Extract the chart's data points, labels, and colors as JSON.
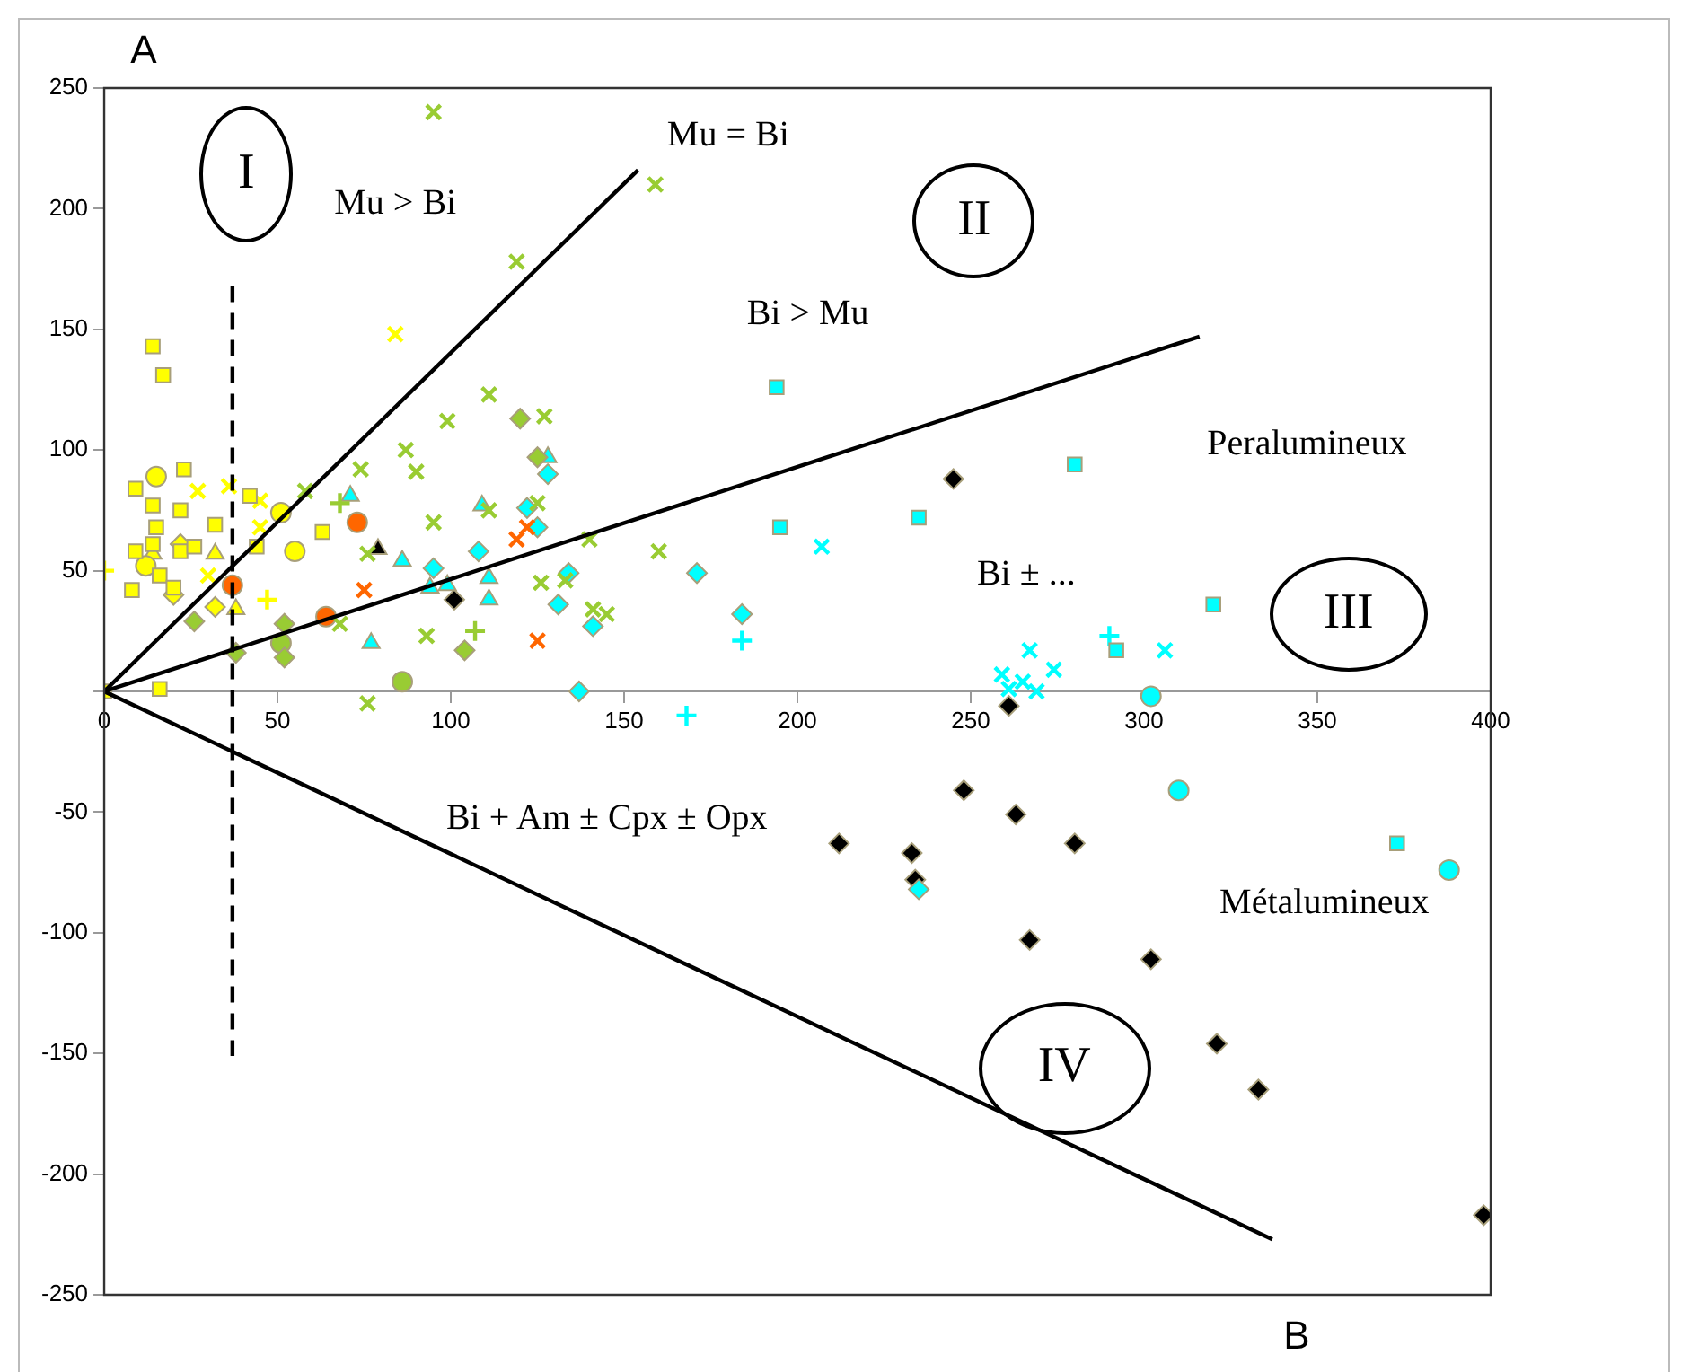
{
  "chart_data": {
    "type": "scatter",
    "xlabel": "B",
    "ylabel": "A",
    "xlim": [
      0,
      400
    ],
    "ylim": [
      -250,
      250
    ],
    "xticks": [
      0,
      50,
      100,
      150,
      200,
      250,
      300,
      350,
      400
    ],
    "yticks": [
      -250,
      -200,
      -150,
      -100,
      -50,
      {
        "value": 0,
        "label": null
      },
      50,
      100,
      150,
      200,
      250
    ],
    "grid": false,
    "legend": false,
    "annotations": [
      "Mu = Bi",
      "I",
      "Mu > Bi",
      "II",
      "Bi > Mu",
      "Peralumineux",
      "Bi ± ...",
      "III",
      "Bi + Am ± Cpx ± Opx",
      "Métalumineux",
      "IV"
    ],
    "series": [
      {
        "type": "line",
        "color": "#000000",
        "marker": "none",
        "line_style": "solid",
        "x": [
          0,
          154
        ],
        "values": [
          0,
          216
        ]
      },
      {
        "type": "line",
        "color": "#000000",
        "marker": "none",
        "line_style": "solid",
        "x": [
          0,
          316
        ],
        "values": [
          0,
          147
        ]
      },
      {
        "type": "line",
        "color": "#000000",
        "marker": "none",
        "line_style": "solid",
        "x": [
          0,
          337
        ],
        "values": [
          0,
          -227
        ]
      },
      {
        "type": "line",
        "color": "#000000",
        "marker": "none",
        "line_style": "dashed",
        "x": [
          37,
          37
        ],
        "values": [
          168,
          -151
        ]
      },
      {
        "color": "#ffff00",
        "marker": "square",
        "x": [
          14,
          17,
          9,
          23,
          14,
          22,
          42,
          63,
          44,
          32,
          15,
          9,
          14,
          8,
          22,
          26,
          16,
          20,
          0,
          16
        ],
        "values": [
          143,
          131,
          84,
          92,
          77,
          75,
          81,
          66,
          60,
          69,
          68,
          58,
          61,
          42,
          58,
          60,
          48,
          43,
          0,
          1
        ]
      },
      {
        "color": "#ffff00",
        "marker": "circle",
        "x": [
          15,
          51,
          55,
          12
        ],
        "values": [
          89,
          74,
          58,
          52
        ]
      },
      {
        "color": "#ffff00",
        "marker": "cross",
        "x": [
          84,
          36,
          45
        ],
        "values": [
          148,
          85,
          79
        ]
      },
      {
        "color": "#ffff00",
        "marker": "cross",
        "x": [
          27,
          45,
          30
        ],
        "values": [
          83,
          68,
          48
        ]
      },
      {
        "color": "#ffff00",
        "marker": "plus",
        "x": [
          0,
          47
        ],
        "values": [
          50,
          38
        ]
      },
      {
        "color": "#ffff00",
        "marker": "diamond",
        "x": [
          22,
          32,
          20
        ],
        "values": [
          61,
          35,
          40
        ]
      },
      {
        "color": "#ffff00",
        "marker": "triangle",
        "x": [
          14,
          32,
          38
        ],
        "values": [
          57,
          57,
          34
        ]
      },
      {
        "color": "#99cc33",
        "marker": "cross",
        "x": [
          95,
          159,
          119,
          111,
          99,
          127,
          87,
          90,
          74,
          58,
          76,
          93,
          68,
          76,
          95,
          111
        ],
        "values": [
          240,
          210,
          178,
          123,
          112,
          114,
          100,
          91,
          92,
          83,
          57,
          23,
          28,
          -5,
          70,
          75
        ]
      },
      {
        "color": "#99cc33",
        "marker": "diamond",
        "x": [
          120,
          104,
          52,
          26,
          38,
          52,
          125
        ],
        "values": [
          113,
          17,
          28,
          29,
          16,
          14,
          97
        ]
      },
      {
        "color": "#99cc33",
        "marker": "circle",
        "x": [
          86,
          51
        ],
        "values": [
          4,
          20
        ]
      },
      {
        "color": "#99cc33",
        "marker": "cross",
        "x": [
          126,
          133,
          140,
          145,
          141,
          160,
          125
        ],
        "values": [
          45,
          46,
          63,
          32,
          34,
          58,
          78
        ]
      },
      {
        "color": "#99cc33",
        "marker": "plus",
        "x": [
          68,
          107
        ],
        "values": [
          78,
          25
        ]
      },
      {
        "color": "#ff6600",
        "marker": "circle",
        "x": [
          37,
          64,
          73
        ],
        "values": [
          44,
          31,
          70
        ]
      },
      {
        "color": "#ff6600",
        "marker": "cross",
        "x": [
          75,
          125,
          119,
          122
        ],
        "values": [
          42,
          21,
          63,
          68
        ]
      },
      {
        "color": "#00ffff",
        "marker": "triangle",
        "x": [
          71,
          86,
          109,
          128,
          111,
          111,
          99,
          94,
          77
        ],
        "values": [
          81,
          54,
          77,
          97,
          47,
          38,
          44,
          43,
          20
        ]
      },
      {
        "color": "#00ffff",
        "marker": "diamond",
        "x": [
          95,
          108,
          128,
          122,
          125,
          131,
          171,
          134,
          141,
          137,
          184,
          235
        ],
        "values": [
          51,
          58,
          90,
          76,
          68,
          36,
          49,
          49,
          27,
          0,
          32,
          -82
        ]
      },
      {
        "color": "#00ffff",
        "marker": "square",
        "x": [
          194,
          195,
          235,
          280,
          320,
          292,
          373
        ],
        "values": [
          126,
          68,
          72,
          94,
          36,
          17,
          -63
        ]
      },
      {
        "color": "#00ffff",
        "marker": "circle",
        "x": [
          302,
          310,
          388
        ],
        "values": [
          -2,
          -41,
          -74
        ]
      },
      {
        "color": "#00ffff",
        "marker": "cross",
        "x": [
          207,
          259,
          267,
          274,
          265,
          269,
          306,
          261
        ],
        "values": [
          60,
          7,
          17,
          9,
          4,
          0,
          17,
          1
        ]
      },
      {
        "color": "#00ffff",
        "marker": "plus",
        "x": [
          184,
          168,
          290
        ],
        "values": [
          21,
          -10,
          23
        ]
      },
      {
        "color": "#000000",
        "marker": "triangle",
        "x": [
          79
        ],
        "values": [
          59
        ]
      },
      {
        "color": "#000000",
        "marker": "diamond",
        "x": [
          101,
          245,
          261,
          248,
          263,
          212,
          233,
          234,
          280,
          267,
          302,
          321,
          333,
          398
        ],
        "values": [
          38,
          88,
          -6,
          -41,
          -51,
          -63,
          -67,
          -78,
          -63,
          -103,
          -111,
          -146,
          -165,
          -217
        ]
      }
    ]
  }
}
